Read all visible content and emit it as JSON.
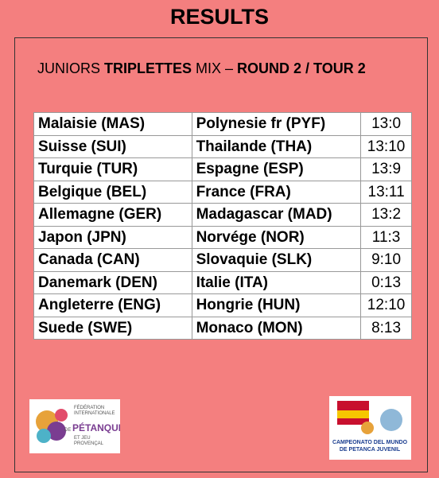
{
  "header": {
    "title": "RESULTS"
  },
  "subtitle": {
    "parts": [
      "JUNIORS ",
      "TRIPLETTES",
      " MIX – ",
      "ROUND 2 / TOUR 2"
    ]
  },
  "table": {
    "rows": [
      [
        "Malaisie (MAS)",
        "Polynesie fr (PYF)",
        "13:0"
      ],
      [
        "Suisse (SUI)",
        "Thailande (THA)",
        "13:10"
      ],
      [
        "Turquie (TUR)",
        "Espagne (ESP)",
        "13:9"
      ],
      [
        "Belgique (BEL)",
        "France (FRA)",
        "13:11"
      ],
      [
        "Allemagne (GER)",
        "Madagascar (MAD)",
        "13:2"
      ],
      [
        "Japon (JPN)",
        "Norvége (NOR)",
        "11:3"
      ],
      [
        "Canada (CAN)",
        "Slovaquie (SLK)",
        "9:10"
      ],
      [
        "Danemark (DEN)",
        "Italie (ITA)",
        "0:13"
      ],
      [
        "Angleterre (ENG)",
        "Hongrie (HUN)",
        "12:10"
      ],
      [
        "Suede (SWE)",
        "Monaco (MON)",
        "8:13"
      ]
    ]
  },
  "logos": {
    "left": [
      "FÉDÉRATION",
      "INTERNATIONALE",
      "DE",
      "PÉTANQUE",
      "ET JEU",
      "PROVENÇAL"
    ],
    "right": [
      "CAMPEONATO DEL MUNDO",
      "DE PETANCA JUVENIL"
    ]
  }
}
